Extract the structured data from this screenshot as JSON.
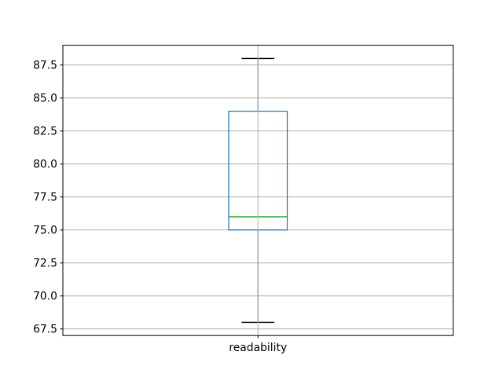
{
  "figure": {
    "background": "#ffffff"
  },
  "chart_data": {
    "type": "boxplot",
    "title": "",
    "xlabel": "",
    "ylabel": "",
    "categories": [
      "readability"
    ],
    "series": [
      {
        "name": "readability",
        "whisker_low": 68,
        "q1": 75,
        "median": 76,
        "q3": 84,
        "whisker_high": 88,
        "outliers": []
      }
    ],
    "ylim": [
      67,
      89
    ],
    "yticklabels": [
      "67.5",
      "70.0",
      "72.5",
      "75.0",
      "77.5",
      "80.0",
      "82.5",
      "85.0",
      "87.5"
    ],
    "grid": true,
    "legend_position": "none",
    "colors": {
      "box": "#1f77b4",
      "whisker": "#1f77b4",
      "cap": "#000000",
      "median": "#2ca02c",
      "grid": "#b0b0b0",
      "spine": "#000000",
      "text": "#000000",
      "background": "#ffffff"
    }
  }
}
